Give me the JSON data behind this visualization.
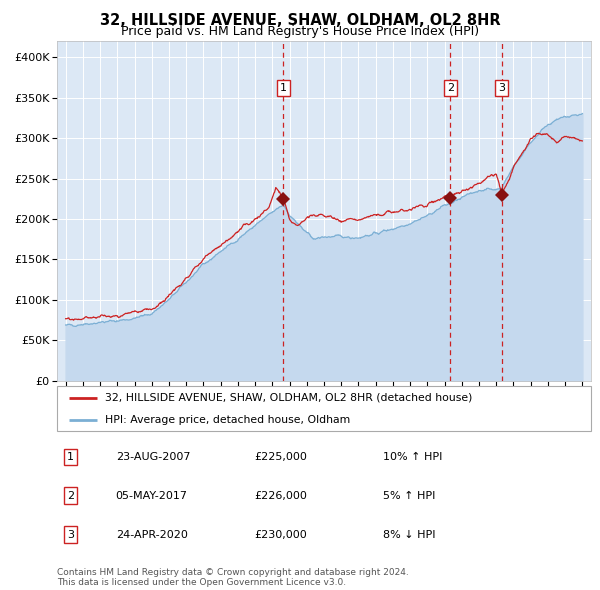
{
  "title": "32, HILLSIDE AVENUE, SHAW, OLDHAM, OL2 8HR",
  "subtitle": "Price paid vs. HM Land Registry's House Price Index (HPI)",
  "title_fontsize": 10.5,
  "subtitle_fontsize": 9,
  "xlim": [
    1994.5,
    2025.5
  ],
  "ylim": [
    0,
    420000
  ],
  "yticks": [
    0,
    50000,
    100000,
    150000,
    200000,
    250000,
    300000,
    350000,
    400000
  ],
  "ytick_labels": [
    "£0",
    "£50K",
    "£100K",
    "£150K",
    "£200K",
    "£250K",
    "£300K",
    "£350K",
    "£400K"
  ],
  "xticks": [
    1995,
    1996,
    1997,
    1998,
    1999,
    2000,
    2001,
    2002,
    2003,
    2004,
    2005,
    2006,
    2007,
    2008,
    2009,
    2010,
    2011,
    2012,
    2013,
    2014,
    2015,
    2016,
    2017,
    2018,
    2019,
    2020,
    2021,
    2022,
    2023,
    2024,
    2025
  ],
  "hpi_color": "#7bafd4",
  "hpi_fill_color": "#c5d9ee",
  "price_color": "#cc2222",
  "marker_color": "#881111",
  "vline_color": "#cc2222",
  "bg_color": "#dce8f5",
  "grid_color": "#ffffff",
  "legend_line1": "32, HILLSIDE AVENUE, SHAW, OLDHAM, OL2 8HR (detached house)",
  "legend_line2": "HPI: Average price, detached house, Oldham",
  "transactions": [
    {
      "id": 1,
      "date": "23-AUG-2007",
      "year": 2007.645,
      "price": 225000,
      "hpi_pct": "10%",
      "hpi_dir": "↑"
    },
    {
      "id": 2,
      "date": "05-MAY-2017",
      "year": 2017.34,
      "price": 226000,
      "hpi_pct": "5%",
      "hpi_dir": "↑"
    },
    {
      "id": 3,
      "date": "24-APR-2020",
      "year": 2020.315,
      "price": 230000,
      "hpi_pct": "8%",
      "hpi_dir": "↓"
    }
  ],
  "footer1": "Contains HM Land Registry data © Crown copyright and database right 2024.",
  "footer2": "This data is licensed under the Open Government Licence v3.0.",
  "key_years_hpi": [
    1995,
    1996,
    1997,
    1998,
    1999,
    2000,
    2001,
    2002,
    2003,
    2004,
    2005,
    2006,
    2007,
    2007.65,
    2008,
    2009,
    2009.5,
    2010,
    2011,
    2012,
    2013,
    2014,
    2015,
    2016,
    2017,
    2017.34,
    2018,
    2019,
    2020,
    2020.32,
    2021,
    2022,
    2023,
    2024,
    2025
  ],
  "key_vals_hpi": [
    68000,
    70000,
    72000,
    74000,
    77000,
    83000,
    100000,
    122000,
    143000,
    160000,
    175000,
    192000,
    208000,
    218000,
    205000,
    182000,
    175000,
    178000,
    178000,
    177000,
    182000,
    188000,
    195000,
    204000,
    217000,
    219000,
    226000,
    236000,
    237000,
    239000,
    265000,
    295000,
    318000,
    326000,
    330000
  ],
  "key_years_price": [
    1995,
    1996,
    1997,
    1998,
    1999,
    2000,
    2001,
    2002,
    2003,
    2004,
    2005,
    2006,
    2006.8,
    2007.2,
    2007.645,
    2008,
    2008.5,
    2009,
    2010,
    2011,
    2012,
    2013,
    2014,
    2015,
    2016,
    2017,
    2017.34,
    2018,
    2019,
    2020,
    2020.32,
    2021,
    2022,
    2023,
    2023.5,
    2024,
    2025
  ],
  "key_vals_price": [
    75000,
    77000,
    79000,
    80000,
    83000,
    88000,
    105000,
    128000,
    150000,
    168000,
    183000,
    200000,
    215000,
    238000,
    225000,
    198000,
    192000,
    202000,
    205000,
    198000,
    200000,
    204000,
    208000,
    212000,
    218000,
    228000,
    226000,
    232000,
    244000,
    256000,
    230000,
    264000,
    300000,
    305000,
    295000,
    300000,
    298000
  ]
}
